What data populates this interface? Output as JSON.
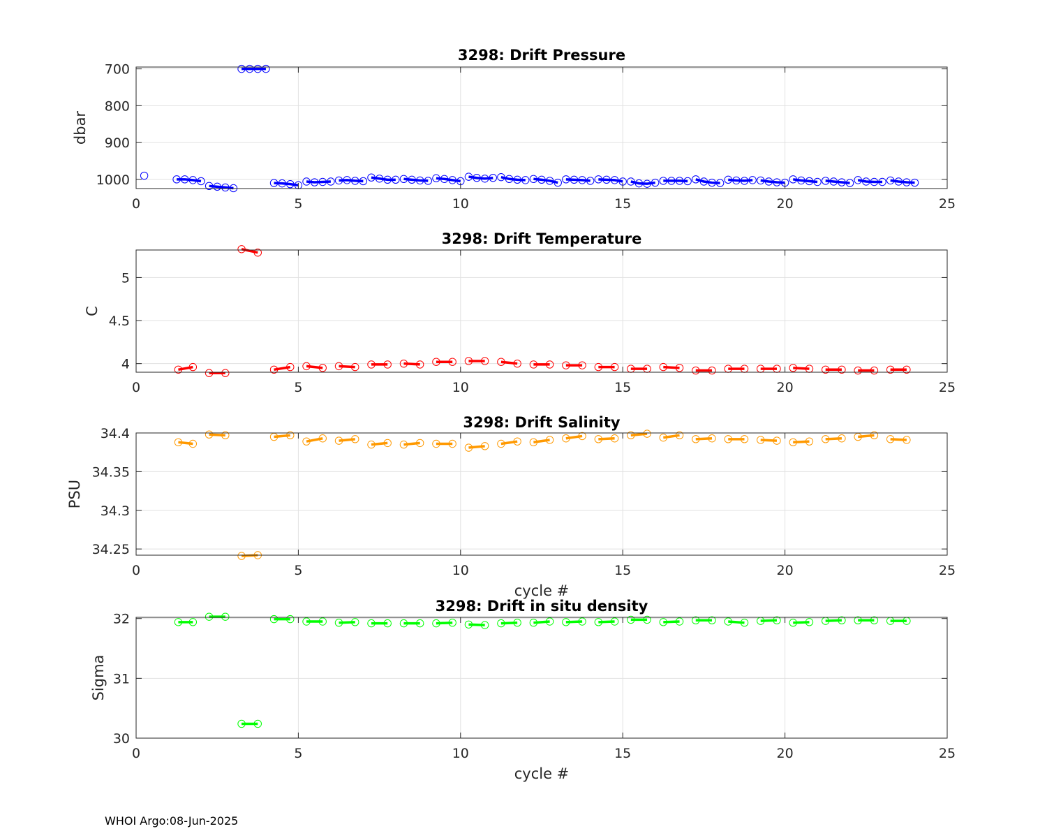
{
  "footer": "WHOI Argo:08-Jun-2025",
  "chart_data": [
    {
      "type": "line",
      "title": "3298: Drift Pressure",
      "xlabel": "",
      "ylabel": "dbar",
      "xlim": [
        0,
        25
      ],
      "ylim": [
        1025,
        695
      ],
      "y_reversed": true,
      "yticks": [
        700,
        800,
        900,
        1000
      ],
      "yticklabels": [
        "700",
        "800",
        "900",
        "1000"
      ],
      "xticks": [
        0,
        5,
        10,
        15,
        20,
        25
      ],
      "xticklabels": [
        "0",
        "5",
        "10",
        "15",
        "20",
        "25"
      ],
      "grid": true,
      "color": "#0000ff",
      "groups": [
        {
          "x": [
            0.25
          ],
          "y": [
            990
          ]
        },
        {
          "x": [
            1.25,
            1.5,
            1.75,
            2.0
          ],
          "y": [
            1000,
            1000,
            1002,
            1005
          ]
        },
        {
          "x": [
            2.25,
            2.5,
            2.75,
            3.0
          ],
          "y": [
            1018,
            1020,
            1022,
            1024
          ]
        },
        {
          "x": [
            3.25,
            3.5,
            3.75,
            4.0
          ],
          "y": [
            700,
            700,
            700,
            700
          ]
        },
        {
          "x": [
            4.25,
            4.5,
            4.75,
            5.0
          ],
          "y": [
            1010,
            1011,
            1013,
            1016
          ]
        },
        {
          "x": [
            5.25,
            5.5,
            5.75,
            6.0
          ],
          "y": [
            1006,
            1008,
            1007,
            1006
          ]
        },
        {
          "x": [
            6.25,
            6.5,
            6.75,
            7.0
          ],
          "y": [
            1003,
            1002,
            1004,
            1005
          ]
        },
        {
          "x": [
            7.25,
            7.5,
            7.75,
            8.0
          ],
          "y": [
            995,
            998,
            1001,
            1001
          ]
        },
        {
          "x": [
            8.25,
            8.5,
            8.75,
            9.0
          ],
          "y": [
            999,
            1001,
            1003,
            1004
          ]
        },
        {
          "x": [
            9.25,
            9.5,
            9.75,
            10.0
          ],
          "y": [
            997,
            999,
            1002,
            1005
          ]
        },
        {
          "x": [
            10.25,
            10.5,
            10.75,
            11.0
          ],
          "y": [
            993,
            996,
            998,
            996
          ]
        },
        {
          "x": [
            11.25,
            11.5,
            11.75,
            12.0
          ],
          "y": [
            994,
            999,
            1001,
            1002
          ]
        },
        {
          "x": [
            12.25,
            12.5,
            12.75,
            13.0
          ],
          "y": [
            999,
            1001,
            1004,
            1009
          ]
        },
        {
          "x": [
            13.25,
            13.5,
            13.75,
            14.0
          ],
          "y": [
            1000,
            1001,
            1002,
            1004
          ]
        },
        {
          "x": [
            14.25,
            14.5,
            14.75,
            15.0
          ],
          "y": [
            1000,
            1001,
            1002,
            1006
          ]
        },
        {
          "x": [
            15.25,
            15.5,
            15.75,
            16.0
          ],
          "y": [
            1006,
            1011,
            1012,
            1009
          ]
        },
        {
          "x": [
            16.25,
            16.5,
            16.75,
            17.0
          ],
          "y": [
            1004,
            1004,
            1004,
            1005
          ]
        },
        {
          "x": [
            17.25,
            17.5,
            17.75,
            18.0
          ],
          "y": [
            1000,
            1006,
            1009,
            1010
          ]
        },
        {
          "x": [
            18.25,
            18.5,
            18.75,
            19.0
          ],
          "y": [
            1001,
            1003,
            1004,
            1002
          ]
        },
        {
          "x": [
            19.25,
            19.5,
            19.75,
            20.0
          ],
          "y": [
            1003,
            1006,
            1008,
            1009
          ]
        },
        {
          "x": [
            20.25,
            20.5,
            20.75,
            21.0
          ],
          "y": [
            1000,
            1003,
            1005,
            1007
          ]
        },
        {
          "x": [
            21.25,
            21.5,
            21.75,
            22.0
          ],
          "y": [
            1004,
            1006,
            1008,
            1010
          ]
        },
        {
          "x": [
            22.25,
            22.5,
            22.75,
            23.0
          ],
          "y": [
            1002,
            1006,
            1007,
            1007
          ]
        },
        {
          "x": [
            23.25,
            23.5,
            23.75,
            24.0
          ],
          "y": [
            1003,
            1006,
            1008,
            1009
          ]
        }
      ]
    },
    {
      "type": "line",
      "title": "3298: Drift Temperature",
      "xlabel": "",
      "ylabel": "C",
      "xlim": [
        0,
        25
      ],
      "ylim": [
        3.9,
        5.32
      ],
      "yticks": [
        4,
        4.5,
        5
      ],
      "yticklabels": [
        "4",
        "4.5",
        "5"
      ],
      "xticks": [
        0,
        5,
        10,
        15,
        20,
        25
      ],
      "xticklabels": [
        "0",
        "5",
        "10",
        "15",
        "20",
        "25"
      ],
      "grid": true,
      "color": "#ff0000",
      "groups": [
        {
          "x": [
            1.3,
            1.75
          ],
          "y": [
            3.93,
            3.96
          ]
        },
        {
          "x": [
            2.25,
            2.75
          ],
          "y": [
            3.89,
            3.89
          ]
        },
        {
          "x": [
            3.25,
            3.75
          ],
          "y": [
            5.33,
            5.29
          ]
        },
        {
          "x": [
            4.25,
            4.75
          ],
          "y": [
            3.93,
            3.96
          ]
        },
        {
          "x": [
            5.25,
            5.75
          ],
          "y": [
            3.97,
            3.95
          ]
        },
        {
          "x": [
            6.25,
            6.75
          ],
          "y": [
            3.97,
            3.96
          ]
        },
        {
          "x": [
            7.25,
            7.75
          ],
          "y": [
            3.99,
            3.99
          ]
        },
        {
          "x": [
            8.25,
            8.75
          ],
          "y": [
            4.0,
            3.99
          ]
        },
        {
          "x": [
            9.25,
            9.75
          ],
          "y": [
            4.02,
            4.02
          ]
        },
        {
          "x": [
            10.25,
            10.75
          ],
          "y": [
            4.03,
            4.03
          ]
        },
        {
          "x": [
            11.25,
            11.75
          ],
          "y": [
            4.02,
            4.0
          ]
        },
        {
          "x": [
            12.25,
            12.75
          ],
          "y": [
            3.99,
            3.99
          ]
        },
        {
          "x": [
            13.25,
            13.75
          ],
          "y": [
            3.98,
            3.98
          ]
        },
        {
          "x": [
            14.25,
            14.75
          ],
          "y": [
            3.96,
            3.96
          ]
        },
        {
          "x": [
            15.25,
            15.75
          ],
          "y": [
            3.94,
            3.94
          ]
        },
        {
          "x": [
            16.25,
            16.75
          ],
          "y": [
            3.96,
            3.95
          ]
        },
        {
          "x": [
            17.25,
            17.75
          ],
          "y": [
            3.92,
            3.92
          ]
        },
        {
          "x": [
            18.25,
            18.75
          ],
          "y": [
            3.94,
            3.94
          ]
        },
        {
          "x": [
            19.25,
            19.75
          ],
          "y": [
            3.94,
            3.94
          ]
        },
        {
          "x": [
            20.25,
            20.75
          ],
          "y": [
            3.95,
            3.94
          ]
        },
        {
          "x": [
            21.25,
            21.75
          ],
          "y": [
            3.93,
            3.93
          ]
        },
        {
          "x": [
            22.25,
            22.75
          ],
          "y": [
            3.92,
            3.92
          ]
        },
        {
          "x": [
            23.25,
            23.75
          ],
          "y": [
            3.93,
            3.93
          ]
        }
      ]
    },
    {
      "type": "line",
      "title": "3298: Drift Salinity",
      "xlabel": "cycle #",
      "ylabel": "PSU",
      "xlim": [
        0,
        25
      ],
      "ylim": [
        34.242,
        34.4
      ],
      "yticks": [
        34.25,
        34.3,
        34.35,
        34.4
      ],
      "yticklabels": [
        "34.25",
        "34.3",
        "34.35",
        "34.4"
      ],
      "xticks": [
        0,
        5,
        10,
        15,
        20,
        25
      ],
      "xticklabels": [
        "0",
        "5",
        "10",
        "15",
        "20",
        "25"
      ],
      "grid": true,
      "color": "#ff9900",
      "groups": [
        {
          "x": [
            1.3,
            1.75
          ],
          "y": [
            34.388,
            34.386
          ]
        },
        {
          "x": [
            2.25,
            2.75
          ],
          "y": [
            34.398,
            34.397
          ]
        },
        {
          "x": [
            3.25,
            3.75
          ],
          "y": [
            34.241,
            34.242
          ]
        },
        {
          "x": [
            4.25,
            4.75
          ],
          "y": [
            34.395,
            34.397
          ]
        },
        {
          "x": [
            5.25,
            5.75
          ],
          "y": [
            34.389,
            34.393
          ]
        },
        {
          "x": [
            6.25,
            6.75
          ],
          "y": [
            34.39,
            34.392
          ]
        },
        {
          "x": [
            7.25,
            7.75
          ],
          "y": [
            34.385,
            34.387
          ]
        },
        {
          "x": [
            8.25,
            8.75
          ],
          "y": [
            34.385,
            34.387
          ]
        },
        {
          "x": [
            9.25,
            9.75
          ],
          "y": [
            34.386,
            34.386
          ]
        },
        {
          "x": [
            10.25,
            10.75
          ],
          "y": [
            34.381,
            34.383
          ]
        },
        {
          "x": [
            11.25,
            11.75
          ],
          "y": [
            34.386,
            34.389
          ]
        },
        {
          "x": [
            12.25,
            12.75
          ],
          "y": [
            34.388,
            34.391
          ]
        },
        {
          "x": [
            13.25,
            13.75
          ],
          "y": [
            34.393,
            34.396
          ]
        },
        {
          "x": [
            14.25,
            14.75
          ],
          "y": [
            34.392,
            34.393
          ]
        },
        {
          "x": [
            15.25,
            15.75
          ],
          "y": [
            34.397,
            34.399
          ]
        },
        {
          "x": [
            16.25,
            16.75
          ],
          "y": [
            34.394,
            34.397
          ]
        },
        {
          "x": [
            17.25,
            17.75
          ],
          "y": [
            34.392,
            34.393
          ]
        },
        {
          "x": [
            18.25,
            18.75
          ],
          "y": [
            34.392,
            34.392
          ]
        },
        {
          "x": [
            19.25,
            19.75
          ],
          "y": [
            34.391,
            34.39
          ]
        },
        {
          "x": [
            20.25,
            20.75
          ],
          "y": [
            34.388,
            34.389
          ]
        },
        {
          "x": [
            21.25,
            21.75
          ],
          "y": [
            34.392,
            34.393
          ]
        },
        {
          "x": [
            22.25,
            22.75
          ],
          "y": [
            34.395,
            34.397
          ]
        },
        {
          "x": [
            23.25,
            23.75
          ],
          "y": [
            34.392,
            34.391
          ]
        }
      ]
    },
    {
      "type": "line",
      "title": "3298: Drift in situ density",
      "xlabel": "cycle #",
      "ylabel": "Sigma",
      "xlim": [
        0,
        25
      ],
      "ylim": [
        30,
        32.02
      ],
      "yticks": [
        30,
        31,
        32
      ],
      "yticklabels": [
        "30",
        "31",
        "32"
      ],
      "xticks": [
        0,
        5,
        10,
        15,
        20,
        25
      ],
      "xticklabels": [
        "0",
        "5",
        "10",
        "15",
        "20",
        "25"
      ],
      "grid": true,
      "color": "#00ff00",
      "groups": [
        {
          "x": [
            1.3,
            1.75
          ],
          "y": [
            31.94,
            31.94
          ]
        },
        {
          "x": [
            2.25,
            2.75
          ],
          "y": [
            32.03,
            32.03
          ]
        },
        {
          "x": [
            3.25,
            3.75
          ],
          "y": [
            30.24,
            30.24
          ]
        },
        {
          "x": [
            4.25,
            4.75
          ],
          "y": [
            31.99,
            31.99
          ]
        },
        {
          "x": [
            5.25,
            5.75
          ],
          "y": [
            31.95,
            31.95
          ]
        },
        {
          "x": [
            6.25,
            6.75
          ],
          "y": [
            31.93,
            31.94
          ]
        },
        {
          "x": [
            7.25,
            7.75
          ],
          "y": [
            31.92,
            31.92
          ]
        },
        {
          "x": [
            8.25,
            8.75
          ],
          "y": [
            31.92,
            31.92
          ]
        },
        {
          "x": [
            9.25,
            9.75
          ],
          "y": [
            31.92,
            31.93
          ]
        },
        {
          "x": [
            10.25,
            10.75
          ],
          "y": [
            31.9,
            31.89
          ]
        },
        {
          "x": [
            11.25,
            11.75
          ],
          "y": [
            31.92,
            31.93
          ]
        },
        {
          "x": [
            12.25,
            12.75
          ],
          "y": [
            31.93,
            31.95
          ]
        },
        {
          "x": [
            13.25,
            13.75
          ],
          "y": [
            31.94,
            31.95
          ]
        },
        {
          "x": [
            14.25,
            14.75
          ],
          "y": [
            31.94,
            31.95
          ]
        },
        {
          "x": [
            15.25,
            15.75
          ],
          "y": [
            31.98,
            31.98
          ]
        },
        {
          "x": [
            16.25,
            16.75
          ],
          "y": [
            31.94,
            31.95
          ]
        },
        {
          "x": [
            17.25,
            17.75
          ],
          "y": [
            31.97,
            31.97
          ]
        },
        {
          "x": [
            18.25,
            18.75
          ],
          "y": [
            31.95,
            31.93
          ]
        },
        {
          "x": [
            19.25,
            19.75
          ],
          "y": [
            31.96,
            31.97
          ]
        },
        {
          "x": [
            20.25,
            20.75
          ],
          "y": [
            31.93,
            31.94
          ]
        },
        {
          "x": [
            21.25,
            21.75
          ],
          "y": [
            31.96,
            31.97
          ]
        },
        {
          "x": [
            22.25,
            22.75
          ],
          "y": [
            31.97,
            31.97
          ]
        },
        {
          "x": [
            23.25,
            23.75
          ],
          "y": [
            31.96,
            31.96
          ]
        }
      ]
    }
  ]
}
